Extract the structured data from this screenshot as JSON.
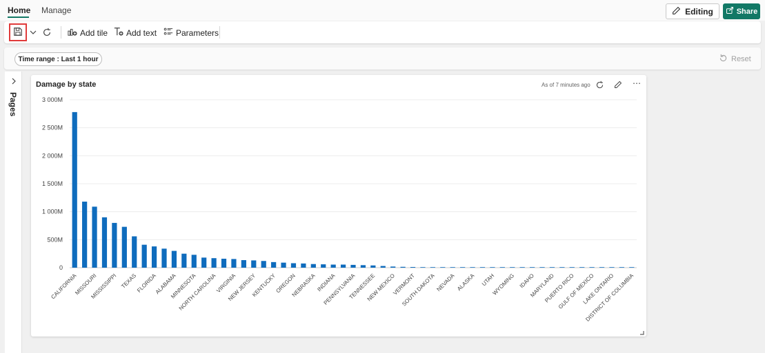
{
  "tabs": [
    {
      "label": "Home",
      "active": true
    },
    {
      "label": "Manage",
      "active": false
    }
  ],
  "header": {
    "editing_label": "Editing",
    "share_label": "Share"
  },
  "toolbar": {
    "add_tile_label": "Add tile",
    "add_text_label": "Add text",
    "parameters_label": "Parameters"
  },
  "filters": {
    "time_range_label": "Time range : Last 1 hour",
    "reset_label": "Reset"
  },
  "pages_label": "Pages",
  "tile": {
    "title": "Damage by state",
    "as_of": "As of 7 minutes ago"
  },
  "colors": {
    "accent": "#117865",
    "bar": "#0F6CBD",
    "highlight": "#E03A3A"
  },
  "chart_data": {
    "type": "bar",
    "title": "Damage by state",
    "xlabel": "",
    "ylabel": "",
    "ylim": [
      0,
      3000
    ],
    "y_unit": "M",
    "y_ticks": [
      "0",
      "500M",
      "1 000M",
      "1 500M",
      "2 000M",
      "2 500M",
      "3 000M"
    ],
    "grid": true,
    "categories": [
      "CALIFORNIA",
      "",
      "MISSOURI",
      "",
      "MISSISSIPPI",
      "",
      "TEXAS",
      "",
      "FLORIDA",
      "",
      "ALABAMA",
      "",
      "MINNESOTA",
      "",
      "NORTH CAROLINA",
      "",
      "VIRGINIA",
      "",
      "NEW JERSEY",
      "",
      "KENTUCKY",
      "",
      "OREGON",
      "",
      "NEBRASKA",
      "",
      "INDIANA",
      "",
      "PENNSYLVANIA",
      "",
      "TENNESSEE",
      "",
      "NEW MEXICO",
      "",
      "VERMONT",
      "",
      "SOUTH DAKOTA",
      "",
      "NEVADA",
      "",
      "ALASKA",
      "",
      "UTAH",
      "",
      "WYOMING",
      "",
      "IDAHO",
      "",
      "MARYLAND",
      "",
      "PUERTO RICO",
      "",
      "GULF OF MEXICO",
      "",
      "LAKE ONTARIO",
      "",
      "DISTRICT OF COLUMBIA"
    ],
    "values": [
      2780,
      1180,
      1090,
      900,
      800,
      730,
      560,
      410,
      380,
      340,
      300,
      250,
      230,
      180,
      170,
      160,
      155,
      135,
      130,
      120,
      100,
      90,
      80,
      75,
      65,
      60,
      55,
      55,
      50,
      45,
      40,
      30,
      20,
      15,
      12,
      10,
      8,
      6,
      5,
      4,
      3,
      3,
      2,
      2,
      2,
      1,
      1,
      1,
      1,
      1,
      1,
      1,
      1,
      1,
      1,
      1,
      1
    ]
  }
}
